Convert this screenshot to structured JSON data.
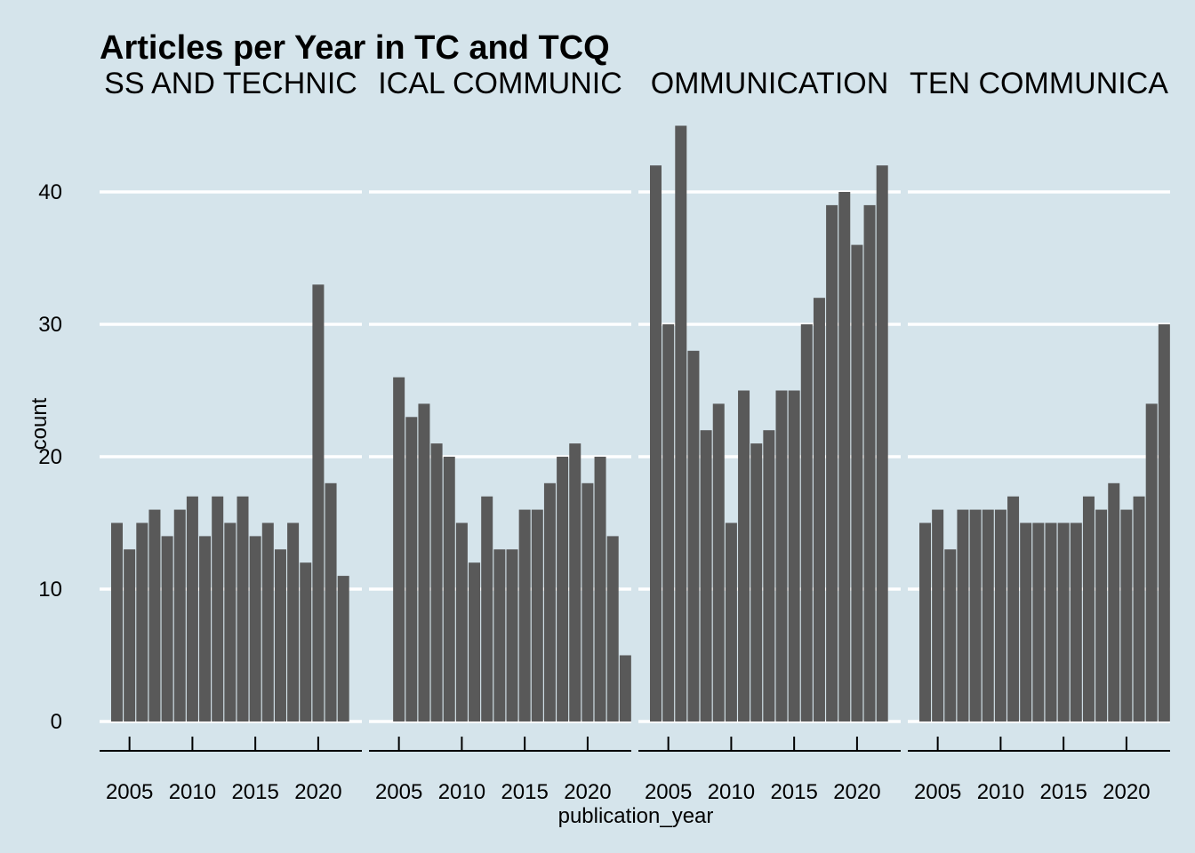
{
  "chart_data": {
    "type": "bar",
    "title": "Articles per Year in TC and TCQ",
    "xlabel": "publication_year",
    "ylabel": "count",
    "ylim": [
      0,
      45
    ],
    "y_ticks": [
      0,
      10,
      20,
      30,
      40
    ],
    "x_ticks": [
      2005,
      2010,
      2015,
      2020
    ],
    "grid": "horizontal major",
    "facets": [
      {
        "strip_label": "SS AND TECHNIC",
        "x": [
          2004,
          2005,
          2006,
          2007,
          2008,
          2009,
          2010,
          2011,
          2012,
          2013,
          2014,
          2015,
          2016,
          2017,
          2018,
          2019,
          2020,
          2021,
          2022,
          2023
        ],
        "values": [
          15,
          13,
          15,
          16,
          14,
          16,
          17,
          14,
          17,
          15,
          17,
          14,
          15,
          13,
          15,
          12,
          33,
          18,
          11,
          null
        ]
      },
      {
        "strip_label": "ICAL COMMUNIC",
        "x": [
          2004,
          2005,
          2006,
          2007,
          2008,
          2009,
          2010,
          2011,
          2012,
          2013,
          2014,
          2015,
          2016,
          2017,
          2018,
          2019,
          2020,
          2021,
          2022,
          2023
        ],
        "values": [
          null,
          26,
          23,
          24,
          21,
          20,
          15,
          12,
          17,
          13,
          13,
          16,
          16,
          18,
          20,
          21,
          18,
          20,
          14,
          5
        ]
      },
      {
        "strip_label": "OMMUNICATION",
        "x": [
          2004,
          2005,
          2006,
          2007,
          2008,
          2009,
          2010,
          2011,
          2012,
          2013,
          2014,
          2015,
          2016,
          2017,
          2018,
          2019,
          2020,
          2021,
          2022,
          2023
        ],
        "values": [
          42,
          30,
          45,
          28,
          22,
          24,
          15,
          25,
          21,
          22,
          25,
          25,
          30,
          32,
          39,
          40,
          36,
          39,
          42,
          null
        ]
      },
      {
        "strip_label": "TEN COMMUNICA",
        "x": [
          2004,
          2005,
          2006,
          2007,
          2008,
          2009,
          2010,
          2011,
          2012,
          2013,
          2014,
          2015,
          2016,
          2017,
          2018,
          2019,
          2020,
          2021,
          2022,
          2023
        ],
        "values": [
          15,
          16,
          13,
          16,
          16,
          16,
          16,
          17,
          15,
          15,
          15,
          15,
          15,
          17,
          16,
          18,
          16,
          17,
          24,
          30
        ]
      }
    ]
  },
  "colors": {
    "background": "#d5e4eb",
    "bar": "#595959",
    "grid": "#ffffff",
    "text": "#000000"
  }
}
